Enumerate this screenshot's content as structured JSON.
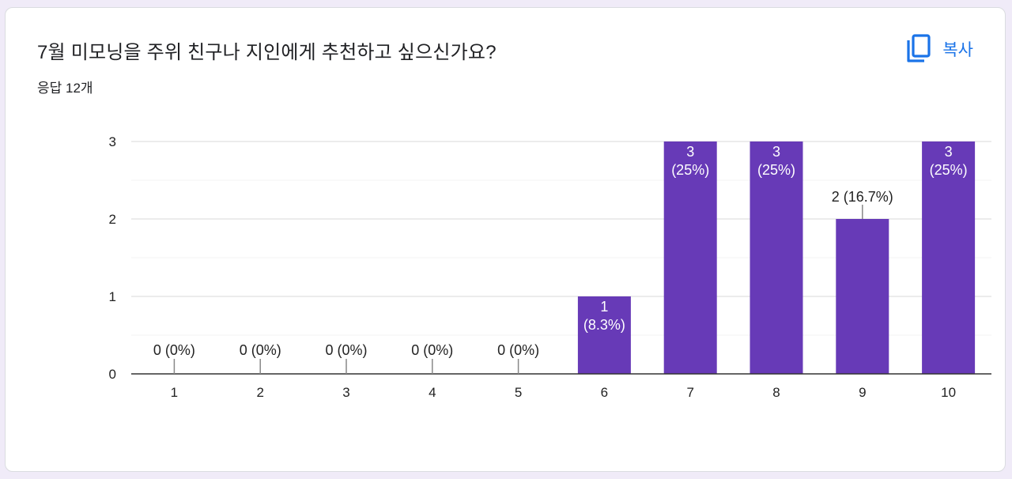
{
  "question": {
    "title": "7월 미모닝을 주위 친구나 지인에게 추천하고 싶으신가요?",
    "response_count": "응답 12개"
  },
  "copy_button": {
    "label": "복사",
    "icon": "copy-icon"
  },
  "colors": {
    "bar": "#673ab7",
    "accent": "#1a73e8",
    "background": "#f0ebf8"
  },
  "chart_data": {
    "type": "bar",
    "categories": [
      "1",
      "2",
      "3",
      "4",
      "5",
      "6",
      "7",
      "8",
      "9",
      "10"
    ],
    "values": [
      0,
      0,
      0,
      0,
      0,
      1,
      3,
      3,
      2,
      3
    ],
    "percent_labels": [
      "0%",
      "0%",
      "0%",
      "0%",
      "0%",
      "8.3%",
      "25%",
      "25%",
      "16.7%",
      "25%"
    ],
    "y_ticks": [
      0,
      1,
      2,
      3
    ],
    "ylim": [
      0,
      3
    ],
    "title": "",
    "xlabel": "",
    "ylabel": "",
    "grid": true
  }
}
